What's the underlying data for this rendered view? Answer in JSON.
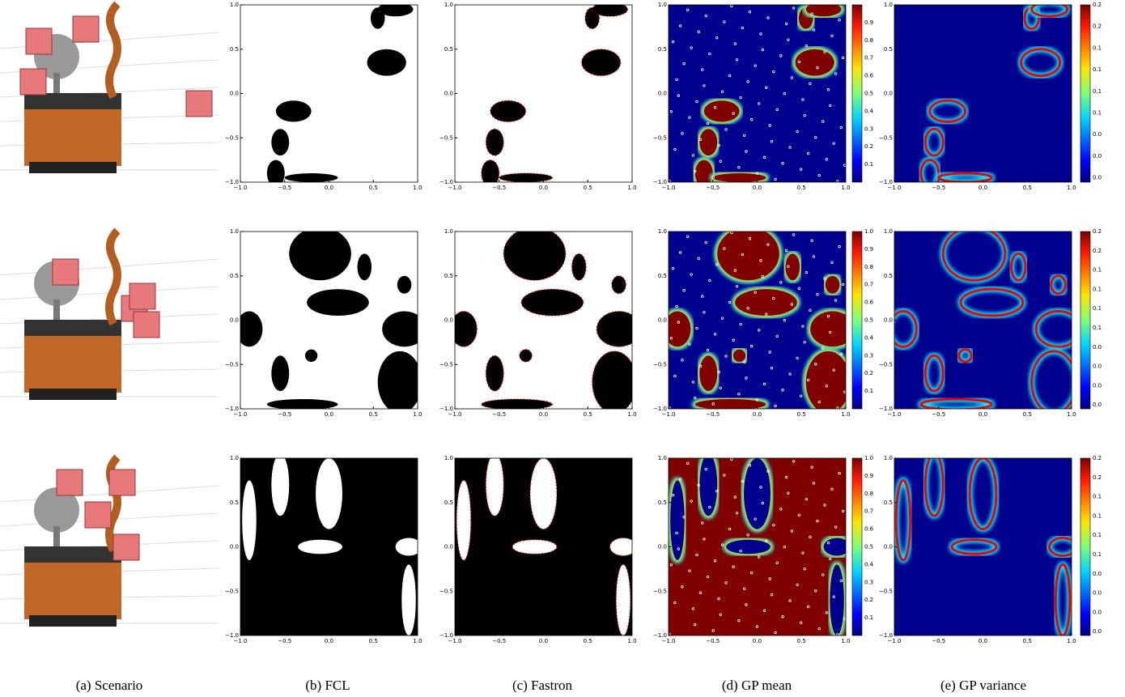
{
  "axis_ticks_x": [
    "−1.0",
    "−0.5",
    "0.0",
    "0.5",
    "1.0"
  ],
  "axis_ticks_y": [
    "1.0",
    "0.5",
    "0.0",
    "−0.5",
    "−1.0"
  ],
  "rows": [
    {
      "gp_mean_colorbar": [
        "0.9",
        "0.8",
        "0.7",
        "0.6",
        "0.5",
        "0.4",
        "0.3",
        "0.2",
        "0.1"
      ],
      "gp_variance_colorbar": [
        "0.2",
        "0.2",
        "0.1",
        "0.1",
        "0.1",
        "0.1",
        "0.0",
        "0.0",
        "0.0"
      ]
    },
    {
      "gp_mean_colorbar": [
        "1.0",
        "0.9",
        "0.8",
        "0.7",
        "0.6",
        "0.5",
        "0.4",
        "0.3",
        "0.2",
        "0.1"
      ],
      "gp_variance_colorbar": [
        "0.2",
        "0.2",
        "0.1",
        "0.1",
        "0.1",
        "0.1",
        "0.0",
        "0.0",
        "0.0",
        "0.0"
      ]
    },
    {
      "gp_mean_colorbar": [
        "1.0",
        "0.9",
        "0.8",
        "0.7",
        "0.6",
        "0.5",
        "0.4",
        "0.3",
        "0.2",
        "0.1"
      ],
      "gp_variance_colorbar": [
        "0.2",
        "0.2",
        "0.1",
        "0.1",
        "0.1",
        "0.1",
        "0.0",
        "0.0",
        "0.0",
        "0.0"
      ]
    }
  ],
  "captions": [
    "(a) Scenario",
    "(b) FCL",
    "(c) Fastron",
    "(d) GP mean",
    "(e) GP variance"
  ]
}
